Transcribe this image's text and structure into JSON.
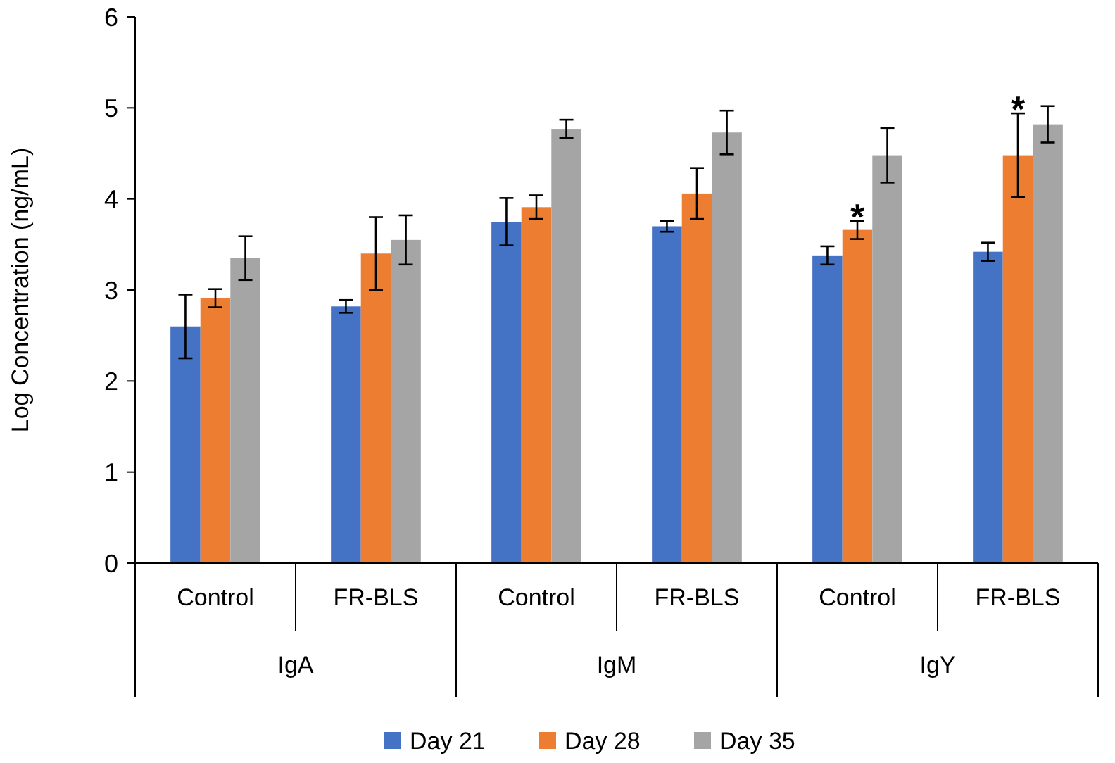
{
  "chart_data": {
    "type": "bar",
    "ylabel": "Log Concentration (ng/mL)",
    "categories": [
      "Control",
      "FR-BLS",
      "Control",
      "FR-BLS",
      "Control",
      "FR-BLS"
    ],
    "series": [
      {
        "name": "Day 21",
        "color": "#4472c4",
        "values": [
          2.6,
          2.82,
          3.75,
          3.7,
          3.38,
          3.42
        ],
        "errors": [
          0.35,
          0.07,
          0.26,
          0.06,
          0.1,
          0.1
        ]
      },
      {
        "name": "Day 28",
        "color": "#ed7d31",
        "values": [
          2.91,
          3.4,
          3.91,
          4.06,
          3.66,
          4.48
        ],
        "errors": [
          0.1,
          0.4,
          0.13,
          0.28,
          0.1,
          0.46
        ],
        "value_labels": [
          null,
          null,
          null,
          null,
          "*",
          "*"
        ]
      },
      {
        "name": "Day 35",
        "color": "#a5a5a5",
        "values": [
          3.35,
          3.55,
          4.77,
          4.73,
          4.48,
          4.82
        ],
        "errors": [
          0.24,
          0.27,
          0.1,
          0.24,
          0.3,
          0.2
        ]
      }
    ],
    "ylim": [
      0,
      6
    ],
    "yticks": [
      0,
      1,
      2,
      3,
      4,
      5,
      6
    ],
    "grid": false,
    "legend": "bottom",
    "annotations": [
      "IgA",
      "IgM",
      "IgY"
    ]
  }
}
